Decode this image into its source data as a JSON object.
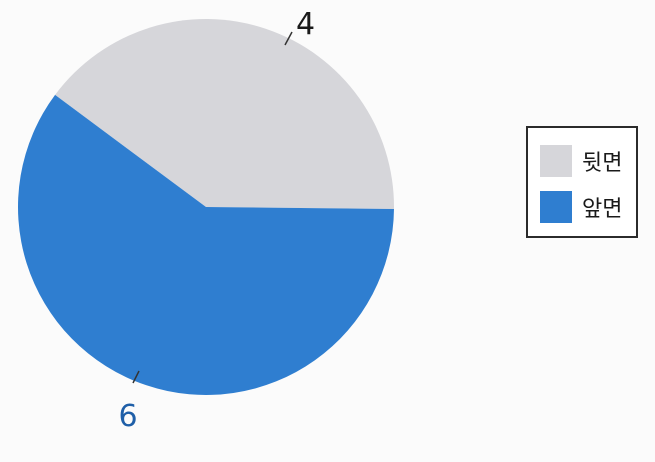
{
  "chart_data": {
    "type": "pie",
    "categories": [
      "뒷면",
      "앞면"
    ],
    "values": [
      4,
      6
    ],
    "colors": [
      "#d6d6da",
      "#2f7ed0"
    ],
    "label_colors": [
      "#1a1a1a",
      "#1f5fa8"
    ],
    "legend_position": "right",
    "data_labels": [
      "4",
      "6"
    ]
  },
  "legend": {
    "items": [
      {
        "label": "뒷면",
        "color": "#d6d6da"
      },
      {
        "label": "앞면",
        "color": "#2f7ed0"
      }
    ]
  }
}
